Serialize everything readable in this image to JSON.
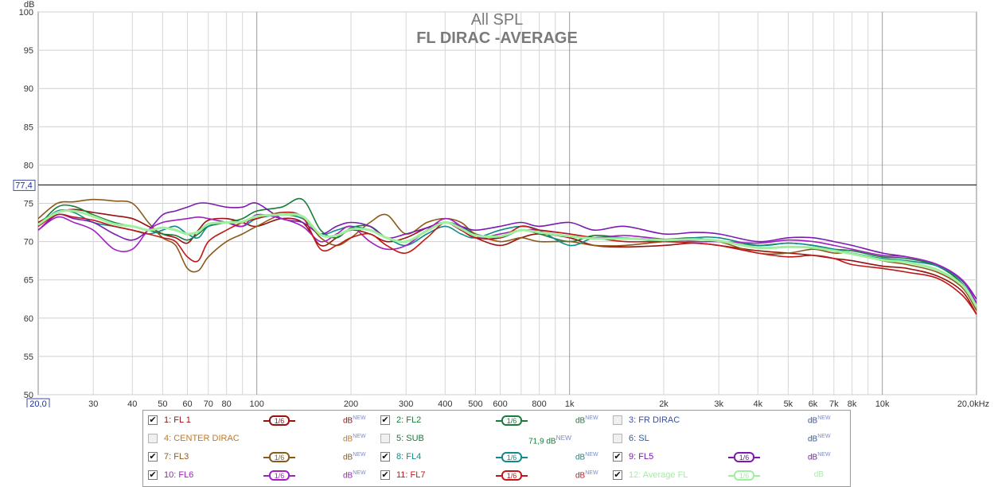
{
  "chart_data": {
    "type": "line",
    "title": "All SPL",
    "subtitle": "FL DIRAC -AVERAGE",
    "ylabel": "dB",
    "ylim": [
      50,
      100
    ],
    "xlim": [
      20,
      20000
    ],
    "x_scale": "log",
    "y_ticks": [
      50,
      55,
      60,
      65,
      70,
      75,
      80,
      85,
      90,
      95,
      100
    ],
    "x_ticks": [
      "30",
      "40",
      "50",
      "60",
      "70",
      "80",
      "100",
      "200",
      "300",
      "400",
      "500",
      "600",
      "800",
      "1k",
      "2k",
      "3k",
      "4k",
      "5k",
      "6k",
      "7k",
      "8k",
      "10k"
    ],
    "x_tick_values": [
      30,
      40,
      50,
      60,
      70,
      80,
      100,
      200,
      300,
      400,
      500,
      600,
      800,
      1000,
      2000,
      3000,
      4000,
      5000,
      6000,
      7000,
      8000,
      10000
    ],
    "x_start_label": "20,0",
    "x_end_label": "20,0kHz",
    "reference_line": {
      "value": 77.4,
      "label": "77,4"
    },
    "grid": true,
    "x": [
      20,
      23,
      26,
      30,
      35,
      40,
      45,
      50,
      55,
      60,
      65,
      70,
      80,
      90,
      100,
      120,
      140,
      160,
      180,
      200,
      230,
      260,
      300,
      350,
      400,
      450,
      500,
      600,
      700,
      800,
      1000,
      1200,
      1500,
      2000,
      2500,
      3000,
      4000,
      5000,
      6000,
      7000,
      8000,
      10000,
      12000,
      15000,
      18000,
      20000
    ],
    "series": [
      {
        "name": "1: FL 1",
        "color": "#9a1010",
        "values": [
          72.5,
          73.8,
          74.2,
          73.8,
          73.4,
          73.0,
          72.0,
          71.0,
          70.5,
          69.8,
          71.5,
          72.8,
          73.0,
          72.5,
          72.0,
          73.0,
          72.5,
          69.5,
          70.5,
          71.5,
          71.0,
          70.0,
          70.5,
          71.8,
          72.5,
          71.5,
          70.5,
          69.5,
          70.5,
          71.0,
          70.5,
          69.5,
          69.3,
          69.5,
          69.8,
          69.5,
          68.8,
          68.5,
          68.2,
          67.8,
          67.5,
          66.8,
          66.5,
          65.5,
          63.5,
          60.5
        ]
      },
      {
        "name": "2: FL2",
        "color": "#1a7a3a",
        "values": [
          72.0,
          74.5,
          74.6,
          73.5,
          72.5,
          72.0,
          71.5,
          71.0,
          70.8,
          70.2,
          71.0,
          72.0,
          72.5,
          73.0,
          74.0,
          74.5,
          75.5,
          71.5,
          70.5,
          71.8,
          72.0,
          70.5,
          70.0,
          71.5,
          72.5,
          72.0,
          71.0,
          70.5,
          71.5,
          71.0,
          70.0,
          70.8,
          70.5,
          70.3,
          70.5,
          70.0,
          69.5,
          69.8,
          69.5,
          69.0,
          68.8,
          68.0,
          67.8,
          66.8,
          64.5,
          61.5
        ]
      },
      {
        "name": "7: FL3",
        "color": "#8b5a1a",
        "values": [
          73.0,
          75.0,
          75.2,
          75.5,
          75.3,
          75.0,
          72.5,
          70.5,
          69.5,
          66.5,
          66.2,
          68.0,
          70.0,
          71.0,
          72.0,
          73.5,
          73.2,
          70.5,
          69.5,
          70.5,
          72.5,
          73.5,
          71.0,
          72.5,
          73.0,
          72.5,
          71.0,
          70.0,
          70.5,
          70.0,
          70.0,
          69.5,
          69.5,
          70.0,
          70.2,
          70.0,
          68.5,
          68.5,
          69.0,
          68.5,
          68.5,
          67.5,
          67.0,
          66.0,
          64.0,
          61.0
        ]
      },
      {
        "name": "8: FL4",
        "color": "#108a8a",
        "values": [
          72.0,
          74.0,
          73.8,
          72.5,
          72.0,
          71.5,
          71.0,
          71.5,
          72.0,
          71.0,
          70.5,
          72.0,
          72.5,
          72.0,
          73.0,
          73.5,
          73.0,
          71.0,
          71.5,
          72.0,
          71.5,
          70.5,
          69.5,
          71.0,
          72.0,
          71.0,
          70.5,
          71.5,
          72.0,
          71.5,
          69.5,
          70.5,
          70.5,
          70.0,
          70.5,
          70.5,
          69.5,
          69.8,
          69.5,
          69.0,
          68.5,
          67.8,
          67.5,
          66.8,
          64.8,
          62.0
        ]
      },
      {
        "name": "9: FL5",
        "color": "#7a1ab0",
        "values": [
          71.5,
          73.5,
          73.0,
          72.5,
          71.0,
          70.2,
          71.5,
          73.5,
          74.0,
          74.5,
          75.0,
          75.0,
          74.5,
          74.5,
          75.0,
          73.0,
          72.5,
          71.0,
          72.0,
          72.5,
          72.0,
          70.5,
          71.0,
          71.8,
          72.5,
          72.0,
          71.5,
          72.0,
          72.5,
          72.0,
          72.5,
          71.5,
          72.0,
          71.0,
          71.2,
          71.0,
          70.0,
          70.5,
          70.5,
          70.0,
          69.5,
          68.5,
          68.0,
          67.0,
          65.0,
          62.5
        ]
      },
      {
        "name": "10: FL6",
        "color": "#a020c0",
        "values": [
          71.5,
          73.2,
          72.5,
          71.5,
          69.0,
          69.0,
          71.5,
          72.5,
          72.8,
          73.0,
          73.2,
          73.0,
          72.5,
          72.0,
          73.5,
          73.0,
          72.0,
          70.0,
          71.0,
          72.0,
          70.0,
          69.0,
          69.5,
          71.5,
          73.0,
          72.0,
          70.5,
          71.0,
          71.5,
          71.5,
          71.0,
          70.5,
          70.8,
          70.3,
          70.0,
          70.0,
          69.8,
          70.2,
          70.0,
          69.5,
          69.0,
          68.2,
          68.0,
          67.0,
          65.0,
          62.0
        ]
      },
      {
        "name": "11: FL7",
        "color": "#c01818",
        "values": [
          72.0,
          73.5,
          73.2,
          72.8,
          72.0,
          71.5,
          71.0,
          70.5,
          70.0,
          68.0,
          67.5,
          70.0,
          71.5,
          72.5,
          73.0,
          73.8,
          73.2,
          69.0,
          69.5,
          70.5,
          71.0,
          69.5,
          68.5,
          70.5,
          72.5,
          71.5,
          70.5,
          70.5,
          72.0,
          71.5,
          71.0,
          70.5,
          70.0,
          70.0,
          69.8,
          69.5,
          68.5,
          68.0,
          68.2,
          67.8,
          67.0,
          66.5,
          66.0,
          65.2,
          63.0,
          60.5
        ]
      },
      {
        "name": "12: Average FL",
        "color": "#9ef09e",
        "width": 3,
        "values": [
          72.2,
          73.8,
          74.0,
          73.3,
          72.3,
          72.0,
          71.5,
          71.8,
          71.5,
          71.0,
          71.3,
          72.3,
          72.5,
          72.6,
          73.3,
          73.5,
          73.3,
          70.9,
          70.8,
          71.6,
          71.5,
          70.5,
          70.0,
          71.4,
          72.5,
          71.7,
          70.8,
          70.7,
          71.5,
          71.2,
          70.7,
          70.4,
          70.4,
          70.2,
          70.3,
          70.1,
          69.2,
          69.3,
          69.2,
          68.8,
          68.4,
          67.6,
          67.3,
          66.3,
          64.3,
          61.5
        ]
      }
    ]
  },
  "legend": {
    "rows": [
      [
        {
          "label": "1: FL 1",
          "checked": true,
          "color": "#9a1010",
          "smooth": "1/6",
          "db": "dB",
          "new": "NEW"
        },
        {
          "label": "2: FL2",
          "checked": true,
          "color": "#1a7a3a",
          "smooth": "1/6",
          "db": "dB",
          "new": "NEW"
        },
        {
          "label": "3: FR DIRAC",
          "checked": false,
          "color": "#3a50a8",
          "smooth": "",
          "db": "dB",
          "new": "NEW"
        }
      ],
      [
        {
          "label": "4: CENTER DIRAC",
          "checked": false,
          "color": "#c07a20",
          "smooth": "",
          "db": "dB",
          "new": "NEW"
        },
        {
          "label": "5: SUB",
          "checked": false,
          "color": "#1a7a3a",
          "smooth": "",
          "db": "",
          "new": "",
          "value": "71,9 dB",
          "value_new": "NEW"
        },
        {
          "label": "6: SL",
          "checked": false,
          "color": "#2a5aa8",
          "smooth": "",
          "db": "dB",
          "new": "NEW"
        }
      ],
      [
        {
          "label": "7: FL3",
          "checked": true,
          "color": "#8b5a1a",
          "smooth": "1/6",
          "db": "dB",
          "new": "NEW"
        },
        {
          "label": "8: FL4",
          "checked": true,
          "color": "#108a8a",
          "smooth": "1/6",
          "db": "dB",
          "new": "NEW"
        },
        {
          "label": "9: FL5",
          "checked": true,
          "color": "#7a1ab0",
          "smooth": "1/6",
          "db": "dB",
          "new": "NEW"
        }
      ],
      [
        {
          "label": "10: FL6",
          "checked": true,
          "color": "#a020c0",
          "smooth": "1/6",
          "db": "dB",
          "new": "NEW"
        },
        {
          "label": "11: FL7",
          "checked": true,
          "color": "#c01818",
          "smooth": "1/6",
          "db": "dB",
          "new": "NEW"
        },
        {
          "label": "12: Average FL",
          "checked": true,
          "color": "#9ef09e",
          "smooth": "1/6",
          "db": "dB",
          "new": ""
        }
      ]
    ]
  }
}
